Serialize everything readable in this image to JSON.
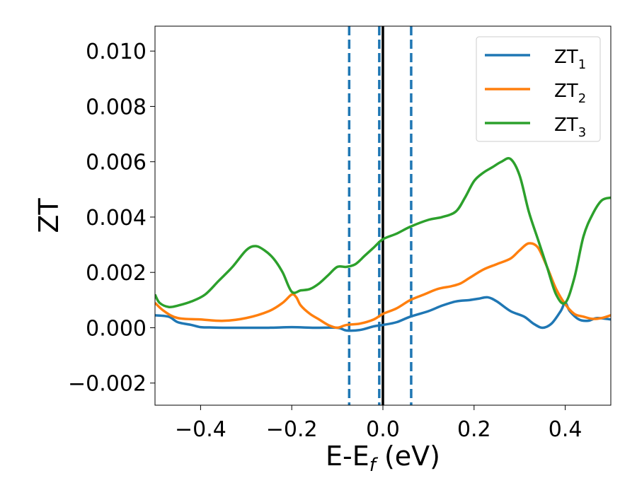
{
  "chart_data": {
    "type": "line",
    "xlabel": {
      "main": "E-E",
      "sub": "f",
      "tail": " (eV)"
    },
    "ylabel": "ZT",
    "xlim": [
      -0.5,
      0.5
    ],
    "ylim": [
      -0.0028,
      0.0109
    ],
    "xticks": [
      -0.4,
      -0.2,
      0.0,
      0.2,
      0.4
    ],
    "xtick_labels": [
      "−0.4",
      "−0.2",
      "0.0",
      "0.2",
      "0.4"
    ],
    "yticks": [
      -0.002,
      0.0,
      0.002,
      0.004,
      0.006,
      0.008,
      0.01
    ],
    "ytick_labels": [
      "−0.002",
      "0.000",
      "0.002",
      "0.004",
      "0.006",
      "0.008",
      "0.010"
    ],
    "grid": false,
    "legend_position": "top-right",
    "vertical_lines": [
      {
        "x": -0.074,
        "style": "dashed",
        "color": "#1f77b4"
      },
      {
        "x": -0.008,
        "style": "dashed",
        "color": "#1f77b4"
      },
      {
        "x": 0.0,
        "style": "solid",
        "color": "#000000"
      },
      {
        "x": 0.062,
        "style": "dashed",
        "color": "#1f77b4"
      }
    ],
    "series": [
      {
        "name": "ZT",
        "sub": "1",
        "color": "#1f77b4",
        "x": [
          -0.5,
          -0.47,
          -0.45,
          -0.42,
          -0.4,
          -0.38,
          -0.35,
          -0.3,
          -0.25,
          -0.2,
          -0.15,
          -0.1,
          -0.08,
          -0.05,
          -0.02,
          0.0,
          0.03,
          0.06,
          0.1,
          0.13,
          0.16,
          0.19,
          0.21,
          0.23,
          0.25,
          0.28,
          0.31,
          0.33,
          0.35,
          0.37,
          0.39,
          0.4,
          0.41,
          0.43,
          0.45,
          0.47,
          0.5
        ],
        "y": [
          0.00045,
          0.0004,
          0.0002,
          0.0001,
          2e-05,
          1e-05,
          0.0,
          0.0,
          0.0,
          2e-05,
          0.0,
          0.0,
          -0.0001,
          -8e-05,
          5e-05,
          0.0001,
          0.0002,
          0.0004,
          0.0006,
          0.0008,
          0.00095,
          0.001,
          0.00105,
          0.0011,
          0.00095,
          0.0006,
          0.0004,
          0.00015,
          0.0,
          0.00015,
          0.0006,
          0.0009,
          0.0006,
          0.0003,
          0.00025,
          0.00035,
          0.0003
        ]
      },
      {
        "name": "ZT",
        "sub": "2",
        "color": "#ff7f0e",
        "x": [
          -0.5,
          -0.48,
          -0.45,
          -0.4,
          -0.35,
          -0.3,
          -0.25,
          -0.22,
          -0.2,
          -0.19,
          -0.18,
          -0.16,
          -0.14,
          -0.12,
          -0.1,
          -0.08,
          -0.05,
          -0.02,
          0.0,
          0.03,
          0.06,
          0.09,
          0.12,
          0.15,
          0.17,
          0.19,
          0.22,
          0.25,
          0.28,
          0.3,
          0.32,
          0.34,
          0.36,
          0.38,
          0.4,
          0.42,
          0.44,
          0.46,
          0.48,
          0.5
        ],
        "y": [
          0.0009,
          0.0006,
          0.00035,
          0.0003,
          0.00025,
          0.00035,
          0.0006,
          0.0009,
          0.0012,
          0.0011,
          0.0008,
          0.0005,
          0.0003,
          0.0001,
          0.0,
          0.0001,
          0.00015,
          0.0003,
          0.0005,
          0.0007,
          0.001,
          0.0012,
          0.0014,
          0.0015,
          0.0016,
          0.0018,
          0.0021,
          0.0023,
          0.0025,
          0.0028,
          0.00305,
          0.0029,
          0.0022,
          0.0014,
          0.00085,
          0.0005,
          0.0004,
          0.00032,
          0.00035,
          0.00045
        ]
      },
      {
        "name": "ZT",
        "sub": "3",
        "color": "#2ca02c",
        "x": [
          -0.5,
          -0.49,
          -0.47,
          -0.45,
          -0.42,
          -0.39,
          -0.36,
          -0.33,
          -0.3,
          -0.28,
          -0.26,
          -0.24,
          -0.22,
          -0.2,
          -0.18,
          -0.16,
          -0.14,
          -0.12,
          -0.1,
          -0.08,
          -0.06,
          -0.04,
          -0.02,
          0.0,
          0.03,
          0.06,
          0.1,
          0.13,
          0.16,
          0.18,
          0.2,
          0.22,
          0.24,
          0.26,
          0.28,
          0.3,
          0.32,
          0.34,
          0.36,
          0.38,
          0.4,
          0.42,
          0.44,
          0.46,
          0.48,
          0.5
        ],
        "y": [
          0.0012,
          0.0009,
          0.00075,
          0.0008,
          0.00095,
          0.0012,
          0.0017,
          0.0022,
          0.0028,
          0.00295,
          0.0028,
          0.0025,
          0.002,
          0.0013,
          0.00135,
          0.0014,
          0.0016,
          0.0019,
          0.0022,
          0.0022,
          0.0023,
          0.0026,
          0.0029,
          0.0032,
          0.0034,
          0.00365,
          0.0039,
          0.004,
          0.0042,
          0.0047,
          0.0053,
          0.0056,
          0.0058,
          0.006,
          0.0061,
          0.0055,
          0.0042,
          0.0032,
          0.0022,
          0.0012,
          0.0009,
          0.0018,
          0.0033,
          0.0041,
          0.0046,
          0.0047
        ]
      }
    ]
  }
}
